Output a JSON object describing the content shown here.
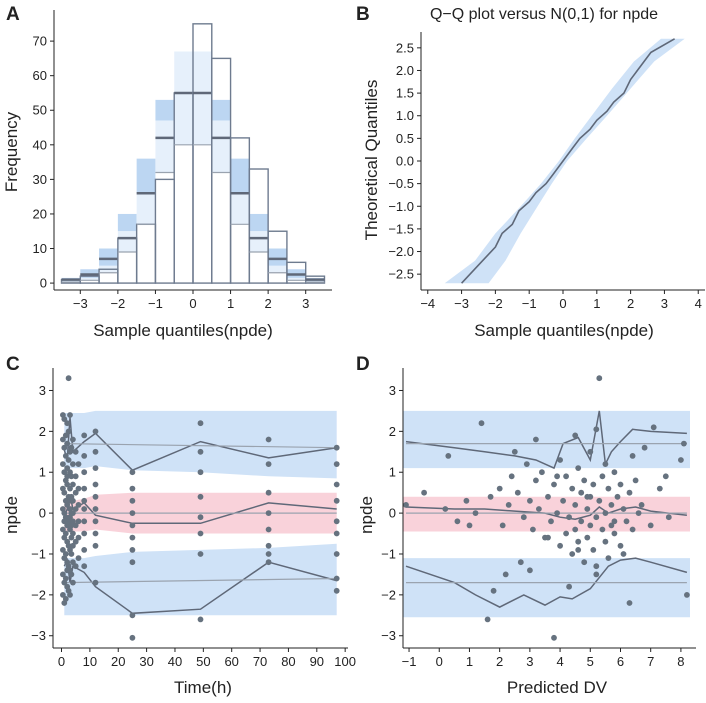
{
  "colors": {
    "bar_fill": "#ffffff",
    "bar_stroke": "#6e7b8f",
    "band_blue": "#cfe2f7",
    "band_blue2": "#bcd6f2",
    "band_pink": "#f9d2da",
    "line_dark": "#5f6878",
    "line_light": "#9aa3af",
    "point": "#66727f",
    "axis": "#222222"
  },
  "chart_data": [
    {
      "panel": "A",
      "type": "bar",
      "title": "",
      "xlabel": "Sample quantiles(npde)",
      "ylabel": "Frequency",
      "xlim": [
        -3.7,
        3.7
      ],
      "ylim": [
        -2,
        79
      ],
      "xticks": [
        -3,
        -2,
        -1,
        0,
        1,
        2,
        3
      ],
      "yticks": [
        0,
        10,
        20,
        30,
        40,
        50,
        60,
        70
      ],
      "bin_width": 0.5,
      "bin_centers": [
        -3.25,
        -2.75,
        -2.25,
        -1.75,
        -1.25,
        -0.75,
        -0.25,
        0.25,
        0.75,
        1.25,
        1.75,
        2.25,
        2.75,
        3.25
      ],
      "values": [
        1,
        2,
        4,
        13,
        17,
        30,
        55,
        75,
        65,
        42,
        33,
        15,
        6,
        2
      ],
      "ref_band_lower": [
        0.5,
        1.5,
        5,
        15,
        26,
        47,
        67,
        67,
        47,
        26,
        15,
        5,
        1.5,
        0.5
      ],
      "ref_band_upper": [
        1.5,
        4,
        10,
        20,
        36,
        53,
        64,
        64,
        53,
        36,
        20,
        10,
        4,
        1.5
      ],
      "ref_median": [
        1,
        2.5,
        7,
        13,
        26,
        42,
        55,
        55,
        42,
        26,
        13,
        7,
        2.5,
        1
      ],
      "ref_inner_lower": [
        0.3,
        0.8,
        3,
        9,
        17,
        32,
        40,
        40,
        32,
        17,
        9,
        3,
        0.8,
        0.3
      ]
    },
    {
      "panel": "B",
      "type": "line",
      "title": "Q−Q plot versus N(0,1) for npde",
      "xlabel": "Sample quantiles(npde)",
      "ylabel": "Theoretical Quantiles",
      "xlim": [
        -4.2,
        4.2
      ],
      "ylim": [
        -2.85,
        2.85
      ],
      "xticks": [
        -4,
        -3,
        -2,
        -1,
        0,
        1,
        2,
        3,
        4
      ],
      "yticks": [
        -2.5,
        -2.0,
        -1.5,
        -1.0,
        -0.5,
        0.0,
        0.5,
        1.0,
        1.5,
        2.0,
        2.5
      ],
      "band_y": [
        -2.7,
        -2.2,
        -1.6,
        -1.0,
        -0.5,
        0.0,
        0.5,
        1.0,
        1.6,
        2.2,
        2.7
      ],
      "band_lo_x": [
        -3.5,
        -2.6,
        -2.0,
        -1.25,
        -0.65,
        -0.12,
        0.35,
        0.85,
        1.45,
        2.1,
        2.9
      ],
      "band_hi_x": [
        -2.2,
        -1.7,
        -1.25,
        -0.75,
        -0.33,
        0.12,
        0.7,
        1.3,
        2.0,
        2.7,
        3.6
      ],
      "series": [
        {
          "name": "npde",
          "x": [
            -3.0,
            -2.5,
            -2.0,
            -1.8,
            -1.5,
            -1.3,
            -1.0,
            -0.8,
            -0.5,
            -0.3,
            0.0,
            0.3,
            0.5,
            0.8,
            1.0,
            1.3,
            1.5,
            1.8,
            2.0,
            2.3,
            2.6,
            3.3
          ],
          "y": [
            -2.7,
            -2.3,
            -1.9,
            -1.6,
            -1.4,
            -1.1,
            -0.9,
            -0.7,
            -0.5,
            -0.3,
            0.0,
            0.3,
            0.5,
            0.7,
            0.9,
            1.1,
            1.3,
            1.5,
            1.8,
            2.1,
            2.4,
            2.7
          ]
        }
      ]
    },
    {
      "panel": "C",
      "type": "scatter",
      "title": "",
      "xlabel": "Time(h)",
      "ylabel": "npde",
      "xlim": [
        -3,
        101
      ],
      "ylim": [
        -3.3,
        3.55
      ],
      "xticks": [
        0,
        10,
        20,
        30,
        40,
        50,
        60,
        70,
        80,
        90,
        100
      ],
      "yticks": [
        -3,
        -2,
        -1,
        0,
        1,
        2,
        3
      ],
      "bins_x": [
        1,
        2,
        3,
        4,
        8,
        12,
        25,
        49,
        73,
        97
      ],
      "blue_upper_band": {
        "lo": [
          1.0,
          1.05,
          1.1,
          1.1,
          1.1,
          1.15,
          1.05,
          1.0,
          0.9,
          0.85
        ],
        "hi": [
          2.45,
          2.45,
          2.45,
          2.45,
          2.45,
          2.5,
          2.5,
          2.5,
          2.5,
          2.5
        ]
      },
      "pink_band": {
        "lo": [
          -0.45,
          -0.45,
          -0.45,
          -0.45,
          -0.45,
          -0.4,
          -0.5,
          -0.5,
          -0.5,
          -0.5
        ],
        "hi": [
          0.3,
          0.3,
          0.3,
          0.3,
          0.35,
          0.45,
          0.5,
          0.5,
          0.5,
          0.5
        ]
      },
      "blue_lower_band": {
        "lo": [
          -2.5,
          -2.5,
          -2.5,
          -2.5,
          -2.5,
          -2.5,
          -2.5,
          -2.5,
          -2.5,
          -2.5
        ],
        "hi": [
          -1.1,
          -1.1,
          -1.1,
          -1.1,
          -1.1,
          -1.05,
          -0.95,
          -0.9,
          -0.85,
          -0.75
        ]
      },
      "series": [
        {
          "name": "obs_q95",
          "x": [
            1,
            2,
            3,
            4,
            8,
            12,
            25,
            49,
            73,
            97
          ],
          "y": [
            1.55,
            1.3,
            2.35,
            1.5,
            1.75,
            1.95,
            1.05,
            1.75,
            1.35,
            1.6
          ]
        },
        {
          "name": "obs_q50",
          "x": [
            1,
            2,
            3,
            4,
            8,
            12,
            25,
            49,
            73,
            97
          ],
          "y": [
            -0.1,
            0.1,
            0.45,
            0.1,
            0.25,
            -0.05,
            -0.25,
            -0.25,
            0.25,
            0.1
          ]
        },
        {
          "name": "obs_q05",
          "x": [
            1,
            2,
            3,
            4,
            8,
            12,
            25,
            49,
            73,
            97
          ],
          "y": [
            -1.3,
            -1.15,
            -1.7,
            -1.3,
            -1.45,
            -1.8,
            -2.45,
            -2.35,
            -1.2,
            -1.65
          ]
        },
        {
          "name": "ref_q95",
          "x": [
            1,
            97
          ],
          "y": [
            1.7,
            1.6
          ]
        },
        {
          "name": "ref_q50",
          "x": [
            1,
            97
          ],
          "y": [
            0.0,
            0.0
          ]
        },
        {
          "name": "ref_q05",
          "x": [
            1,
            97
          ],
          "y": [
            -1.7,
            -1.6
          ]
        }
      ],
      "points_x": [
        0.5,
        0.5,
        0.5,
        0.5,
        0.5,
        0.5,
        0.5,
        0.5,
        0.5,
        1,
        1,
        1,
        1,
        1,
        1,
        1,
        1,
        1,
        1,
        1.5,
        1.5,
        1.5,
        1.5,
        1.5,
        1.5,
        1.5,
        1.5,
        1.5,
        2,
        2,
        2,
        2,
        2,
        2,
        2,
        2,
        2,
        2,
        2,
        2.5,
        2.5,
        2.5,
        2.5,
        2.5,
        2.5,
        2.5,
        2.5,
        3,
        3,
        3,
        3,
        3,
        3,
        3,
        3,
        3,
        3,
        3,
        3.5,
        3.5,
        3.5,
        3.5,
        3.5,
        3.5,
        3.5,
        3.5,
        4,
        4,
        4,
        4,
        4,
        4,
        4,
        4,
        4,
        4,
        5,
        5,
        5,
        5,
        5,
        5,
        5,
        6,
        6,
        6,
        6,
        6,
        6,
        8,
        8,
        8,
        8,
        8,
        8,
        8,
        8,
        8,
        8,
        12,
        12,
        12,
        12,
        12,
        12,
        12,
        12,
        12,
        12,
        25,
        25,
        25,
        25,
        25,
        25,
        25,
        25,
        25,
        25,
        49,
        49,
        49,
        49,
        49,
        49,
        49,
        49,
        73,
        73,
        73,
        73,
        73,
        73,
        73,
        73,
        97,
        97,
        97,
        97,
        97,
        97,
        97,
        97,
        97
      ],
      "points_y": [
        2.4,
        1.8,
        1.2,
        0.6,
        0.1,
        -0.4,
        -0.9,
        -1.5,
        -2.0,
        2.3,
        1.6,
        1.0,
        0.5,
        0.0,
        -0.2,
        -0.6,
        -1.1,
        -1.7,
        -2.2,
        1.9,
        1.4,
        0.8,
        0.3,
        -0.1,
        -0.5,
        -1.0,
        -1.6,
        -2.1,
        2.2,
        1.7,
        1.1,
        0.7,
        0.2,
        -0.3,
        -0.7,
        -1.2,
        -1.8,
        -1.4,
        0.9,
        3.3,
        2.0,
        1.3,
        0.4,
        -0.2,
        -0.8,
        -1.3,
        -1.9,
        2.4,
        1.5,
        1.0,
        0.6,
        0.1,
        -0.1,
        -0.4,
        -0.9,
        -1.4,
        -2.0,
        0.3,
        1.6,
        0.9,
        0.4,
        0.0,
        -0.3,
        -0.6,
        -1.0,
        -1.5,
        1.8,
        1.2,
        0.7,
        0.3,
        0.0,
        -0.2,
        -0.5,
        -0.8,
        -1.2,
        -1.7,
        1.5,
        0.9,
        0.5,
        0.1,
        -0.3,
        -0.7,
        -1.3,
        1.2,
        0.6,
        0.2,
        -0.2,
        -0.6,
        -1.1,
        1.9,
        1.4,
        1.0,
        0.6,
        0.3,
        0.1,
        -0.2,
        -0.5,
        -0.9,
        -1.3,
        2.0,
        1.5,
        1.1,
        0.7,
        0.4,
        0.1,
        -0.2,
        -0.5,
        -0.8,
        -1.7,
        1.0,
        0.6,
        0.3,
        0.0,
        -0.3,
        -0.6,
        -0.9,
        -1.2,
        -2.5,
        -3.05,
        2.2,
        1.5,
        1.0,
        0.4,
        -0.1,
        -0.5,
        -1.0,
        -2.6,
        1.8,
        1.2,
        0.5,
        0.0,
        -0.4,
        -0.8,
        -1.0,
        -1.2,
        1.6,
        1.2,
        0.7,
        0.3,
        -0.2,
        -0.5,
        -1.0,
        -1.6,
        -1.9
      ]
    },
    {
      "panel": "D",
      "type": "scatter",
      "title": "",
      "xlabel": "Predicted DV",
      "ylabel": "npde",
      "xlim": [
        -1.2,
        8.5
      ],
      "ylim": [
        -3.3,
        3.55
      ],
      "xticks": [
        -1,
        0,
        1,
        2,
        3,
        4,
        5,
        6,
        7,
        8
      ],
      "yticks": [
        -3,
        -2,
        -1,
        0,
        1,
        2,
        3
      ],
      "blue_upper_band": {
        "lo": [
          1.1,
          1.1
        ],
        "hi": [
          2.5,
          2.5
        ]
      },
      "pink_band": {
        "lo": [
          -0.45,
          -0.45
        ],
        "hi": [
          0.4,
          0.4
        ]
      },
      "blue_lower_band": {
        "lo": [
          -2.55,
          -2.55
        ],
        "hi": [
          -1.1,
          -1.1
        ]
      },
      "band_x": [
        -1.2,
        8.3
      ],
      "series": [
        {
          "name": "obs_q95",
          "x": [
            -1.1,
            0.5,
            1.5,
            2.5,
            3.2,
            3.8,
            4.1,
            4.6,
            5.0,
            5.3,
            5.5,
            5.7,
            6.0,
            6.4,
            7.0,
            8.2
          ],
          "y": [
            1.75,
            1.6,
            1.5,
            1.4,
            1.3,
            1.1,
            1.7,
            1.85,
            1.3,
            2.5,
            1.2,
            1.5,
            1.75,
            2.05,
            2.0,
            1.95
          ]
        },
        {
          "name": "obs_q50",
          "x": [
            -1.1,
            0.5,
            1.5,
            2.5,
            3.5,
            4.0,
            4.5,
            5.0,
            5.3,
            5.6,
            6.0,
            6.5,
            7.0,
            8.2
          ],
          "y": [
            0.15,
            0.1,
            0.1,
            0.05,
            0.0,
            -0.1,
            -0.15,
            -0.05,
            0.15,
            0.0,
            0.1,
            0.15,
            0.05,
            -0.05
          ]
        },
        {
          "name": "obs_q05",
          "x": [
            -1.1,
            0.5,
            1.2,
            2.0,
            2.8,
            3.5,
            4.0,
            4.4,
            5.0,
            5.6,
            6.0,
            6.5,
            7.0,
            8.2
          ],
          "y": [
            -1.3,
            -1.7,
            -2.0,
            -2.3,
            -2.0,
            -2.25,
            -2.05,
            -2.1,
            -1.85,
            -1.3,
            -1.15,
            -1.1,
            -1.2,
            -1.45
          ]
        },
        {
          "name": "ref_q95",
          "x": [
            -1.1,
            8.2
          ],
          "y": [
            1.7,
            1.7
          ]
        },
        {
          "name": "ref_q50",
          "x": [
            -1.1,
            8.2
          ],
          "y": [
            0.0,
            0.0
          ]
        },
        {
          "name": "ref_q05",
          "x": [
            -1.1,
            8.2
          ],
          "y": [
            -1.7,
            -1.7
          ]
        }
      ],
      "points_x": [
        -1.1,
        -0.5,
        0.2,
        0.6,
        0.9,
        1.2,
        1.4,
        1.7,
        2.0,
        2.1,
        2.3,
        2.4,
        2.6,
        2.8,
        2.9,
        3.0,
        3.1,
        3.2,
        3.3,
        3.4,
        3.5,
        3.6,
        3.7,
        3.8,
        3.9,
        4.0,
        4.0,
        4.1,
        4.2,
        4.2,
        4.3,
        4.4,
        4.4,
        4.5,
        4.5,
        4.6,
        4.6,
        4.7,
        4.7,
        4.8,
        4.8,
        4.9,
        4.9,
        5.0,
        5.0,
        5.0,
        5.1,
        5.1,
        5.2,
        5.2,
        5.3,
        5.3,
        5.4,
        5.4,
        5.5,
        5.5,
        5.6,
        5.6,
        5.7,
        5.7,
        5.8,
        5.8,
        5.9,
        6.0,
        6.0,
        6.1,
        6.2,
        6.3,
        6.4,
        6.5,
        6.6,
        6.8,
        7.0,
        7.3,
        7.6,
        8.0,
        8.2,
        1.0,
        1.6,
        2.2,
        2.7,
        3.2,
        3.6,
        3.9,
        4.3,
        4.6,
        4.9,
        5.2,
        5.5,
        5.8,
        6.1,
        6.4,
        6.7,
        7.1,
        7.5,
        8.1,
        3.8,
        5.2,
        4.5,
        3.0,
        2.5,
        6.3,
        1.8,
        0.3
      ],
      "points_y": [
        0.2,
        0.5,
        0.1,
        -0.2,
        0.3,
        0.0,
        2.2,
        0.4,
        0.6,
        -0.3,
        0.2,
        0.9,
        0.5,
        -0.1,
        1.2,
        0.3,
        -0.4,
        0.8,
        0.1,
        1.0,
        -0.6,
        0.4,
        -0.2,
        0.7,
        0.0,
        -0.8,
        1.3,
        0.3,
        -0.5,
        0.9,
        -0.1,
        0.6,
        -1.0,
        0.2,
        -0.4,
        1.1,
        -0.7,
        0.5,
        -0.2,
        0.8,
        -1.2,
        0.1,
        -0.6,
        0.4,
        -0.3,
        1.5,
        -0.9,
        0.7,
        -0.1,
        -1.5,
        0.3,
        3.3,
        -0.4,
        0.9,
        0.0,
        -0.7,
        0.6,
        -1.1,
        0.2,
        -0.3,
        1.0,
        -0.5,
        0.4,
        -0.8,
        0.7,
        0.1,
        -0.2,
        0.5,
        -0.4,
        0.8,
        0.0,
        1.6,
        -0.3,
        0.6,
        -0.1,
        1.3,
        -2.0,
        -0.3,
        -2.6,
        -1.5,
        -1.2,
        1.8,
        -0.6,
        0.9,
        -1.8,
        -0.9,
        0.4,
        -1.3,
        1.2,
        -0.2,
        -1.0,
        1.4,
        0.2,
        2.1,
        0.9,
        1.7,
        -3.05,
        2.05,
        1.9,
        -1.4,
        1.5,
        -2.2,
        -1.9,
        1.4
      ]
    }
  ],
  "panel_labels": [
    "A",
    "B",
    "C",
    "D"
  ]
}
